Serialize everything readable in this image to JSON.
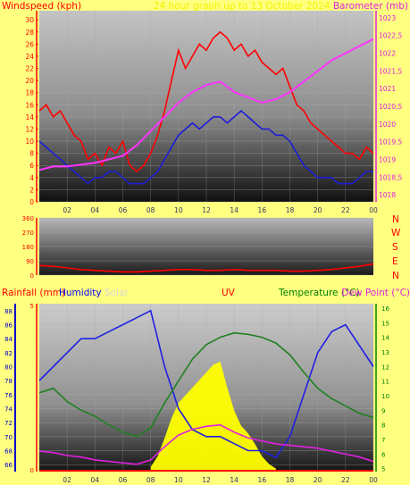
{
  "chart_data": [
    {
      "type": "line",
      "panel": "wind-barometer",
      "title": "24 hour graph up to 13 October 2024",
      "ylabel_left": "Windspeed (kph)",
      "ylabel_right": "Barometer (mb)",
      "x_ticks": [
        "02",
        "04",
        "06",
        "08",
        "10",
        "12",
        "14",
        "16",
        "18",
        "20",
        "22",
        "00"
      ],
      "y_left_ticks": [
        "0",
        "2",
        "4",
        "6",
        "8",
        "10",
        "12",
        "14",
        "16",
        "18",
        "20",
        "22",
        "24",
        "26",
        "28",
        "30"
      ],
      "y_right_ticks": [
        "1018",
        "1018,5",
        "1019",
        "1019,5",
        "1020",
        "1020,5",
        "1021",
        "1021,5",
        "1022",
        "1022,5",
        "1023"
      ],
      "ylim_left": [
        0,
        31.5
      ],
      "ylim_right": [
        1017.8,
        1023.2
      ],
      "series": [
        {
          "name": "Gust",
          "color": "#ff0000",
          "axis": "left",
          "x": [
            0,
            0.5,
            1,
            1.5,
            2,
            2.5,
            3,
            3.5,
            4,
            4.5,
            5,
            5.5,
            6,
            6.5,
            7,
            7.5,
            8,
            8.5,
            9,
            9.5,
            10,
            10.5,
            11,
            11.5,
            12,
            12.5,
            13,
            13.5,
            14,
            14.5,
            15,
            15.5,
            16,
            16.5,
            17,
            17.5,
            18,
            18.5,
            19,
            19.5,
            20,
            20.5,
            21,
            21.5,
            22,
            22.5,
            23,
            23.5,
            24
          ],
          "values": [
            15,
            16,
            14,
            15,
            13,
            11,
            10,
            7,
            8,
            6,
            9,
            8,
            10,
            6,
            5,
            6,
            8,
            11,
            15,
            20,
            25,
            22,
            24,
            26,
            25,
            27,
            28,
            27,
            25,
            26,
            24,
            25,
            23,
            22,
            21,
            22,
            19,
            16,
            15,
            13,
            12,
            11,
            10,
            9,
            8,
            8,
            7,
            9,
            8
          ]
        },
        {
          "name": "Average",
          "color": "#1c1cd8",
          "axis": "left",
          "x": [
            0,
            0.5,
            1,
            1.5,
            2,
            2.5,
            3,
            3.5,
            4,
            4.5,
            5,
            5.5,
            6,
            6.5,
            7,
            7.5,
            8,
            8.5,
            9,
            9.5,
            10,
            10.5,
            11,
            11.5,
            12,
            12.5,
            13,
            13.5,
            14,
            14.5,
            15,
            15.5,
            16,
            16.5,
            17,
            17.5,
            18,
            18.5,
            19,
            19.5,
            20,
            20.5,
            21,
            21.5,
            22,
            22.5,
            23,
            23.5,
            24
          ],
          "values": [
            10,
            9,
            8,
            7,
            6,
            5,
            4,
            3,
            4,
            4,
            5,
            5,
            4,
            3,
            3,
            3,
            4,
            5,
            7,
            9,
            11,
            12,
            13,
            12,
            13,
            14,
            14,
            13,
            14,
            15,
            14,
            13,
            12,
            12,
            11,
            11,
            10,
            8,
            6,
            5,
            4,
            4,
            4,
            3,
            3,
            3,
            4,
            5,
            5
          ]
        },
        {
          "name": "Barometer",
          "color": "#ff33ff",
          "axis": "right",
          "x": [
            0,
            1,
            2,
            3,
            4,
            5,
            6,
            7,
            8,
            9,
            10,
            11,
            12,
            13,
            14,
            15,
            16,
            17,
            18,
            19,
            20,
            21,
            22,
            23,
            24
          ],
          "values": [
            1018.7,
            1018.8,
            1018.8,
            1018.85,
            1018.9,
            1019.0,
            1019.1,
            1019.4,
            1019.8,
            1020.2,
            1020.6,
            1020.9,
            1021.1,
            1021.2,
            1020.9,
            1020.75,
            1020.6,
            1020.7,
            1020.9,
            1021.2,
            1021.5,
            1021.8,
            1022.0,
            1022.2,
            1022.4
          ]
        }
      ]
    },
    {
      "type": "line",
      "panel": "wind-direction",
      "y_ticks": [
        "0",
        "90",
        "180",
        "270",
        "360"
      ],
      "ylim": [
        0,
        360
      ],
      "compass_labels": [
        "N",
        "W",
        "S",
        "E",
        "N"
      ],
      "series": [
        {
          "name": "Direction",
          "color": "#ff0000",
          "x": [
            0,
            1,
            2,
            3,
            4,
            5,
            6,
            7,
            8,
            9,
            10,
            11,
            12,
            13,
            14,
            15,
            16,
            17,
            18,
            19,
            20,
            21,
            22,
            23,
            24
          ],
          "values": [
            60,
            55,
            45,
            35,
            30,
            25,
            20,
            20,
            25,
            30,
            35,
            35,
            30,
            30,
            35,
            30,
            30,
            30,
            25,
            25,
            30,
            35,
            45,
            55,
            70
          ]
        }
      ]
    },
    {
      "type": "line",
      "panel": "rain-humidity-uv-temperature",
      "labels": {
        "rainfall": "Rainfall (mm)",
        "humidity": "Humidity",
        "solar": "Solar",
        "uv": "UV",
        "temperature": "Temperature (°C)",
        "dewpoint": "Dew Point (°C)"
      },
      "x_ticks": [
        "02",
        "04",
        "06",
        "08",
        "10",
        "12",
        "14",
        "16",
        "18",
        "20",
        "22",
        "00"
      ],
      "humidity_ticks": [
        "66",
        "68",
        "70",
        "72",
        "74",
        "76",
        "78",
        "80",
        "82",
        "84",
        "86",
        "88"
      ],
      "humidity_lim": [
        65,
        89
      ],
      "rain_ticks": [
        "0",
        "5"
      ],
      "temp_ticks": [
        "5",
        "6",
        "7",
        "8",
        "9",
        "10",
        "11",
        "12",
        "13",
        "14",
        "15",
        "16"
      ],
      "temp_lim": [
        4.8,
        16.3
      ],
      "series": [
        {
          "name": "Humidity",
          "color": "#2020e0",
          "axis": "humidity",
          "x": [
            0,
            1,
            2,
            3,
            4,
            5,
            6,
            7,
            8,
            9,
            10,
            11,
            12,
            13,
            14,
            15,
            16,
            17,
            18,
            19,
            20,
            21,
            22,
            23,
            24
          ],
          "values": [
            78,
            80,
            82,
            84,
            84,
            85,
            86,
            87,
            88,
            80,
            74,
            71,
            70,
            70,
            69,
            68,
            68,
            67,
            70,
            76,
            82,
            85,
            86,
            83,
            80
          ]
        },
        {
          "name": "Temperature",
          "color": "#208020",
          "axis": "temp",
          "x": [
            0,
            1,
            2,
            3,
            4,
            5,
            6,
            7,
            8,
            9,
            10,
            11,
            12,
            13,
            14,
            15,
            16,
            17,
            18,
            19,
            20,
            21,
            22,
            23,
            24
          ],
          "values": [
            10.2,
            10.5,
            9.6,
            9.0,
            8.6,
            8.0,
            7.5,
            7.2,
            7.8,
            9.5,
            11.0,
            12.5,
            13.5,
            14.0,
            14.3,
            14.2,
            14.0,
            13.6,
            12.8,
            11.6,
            10.5,
            9.8,
            9.3,
            8.8,
            8.5
          ]
        },
        {
          "name": "Dew Point",
          "color": "#e020e0",
          "axis": "temp",
          "x": [
            0,
            1,
            2,
            3,
            4,
            5,
            6,
            7,
            8,
            9,
            10,
            11,
            12,
            13,
            14,
            15,
            16,
            17,
            18,
            19,
            20,
            21,
            22,
            23,
            24
          ],
          "values": [
            6.2,
            6.1,
            5.9,
            5.8,
            5.6,
            5.5,
            5.4,
            5.3,
            5.6,
            6.5,
            7.3,
            7.7,
            7.9,
            8.0,
            7.5,
            7.1,
            6.9,
            6.7,
            6.6,
            6.5,
            6.4,
            6.2,
            6.0,
            5.8,
            5.5
          ]
        },
        {
          "name": "UV",
          "color": "#ffff00",
          "axis": "uv",
          "x": [
            8,
            8.5,
            9,
            9.5,
            10,
            10.5,
            11,
            11.5,
            12,
            12.5,
            13,
            13.5,
            14,
            14.5,
            15,
            15.5,
            16,
            16.5,
            17
          ],
          "values": [
            0.3,
            1.0,
            2.2,
            3.5,
            4.5,
            5.0,
            5.5,
            6.0,
            6.5,
            7.0,
            7.2,
            5.5,
            4.0,
            3.0,
            2.5,
            1.8,
            1.0,
            0.5,
            0.2
          ]
        }
      ]
    }
  ]
}
